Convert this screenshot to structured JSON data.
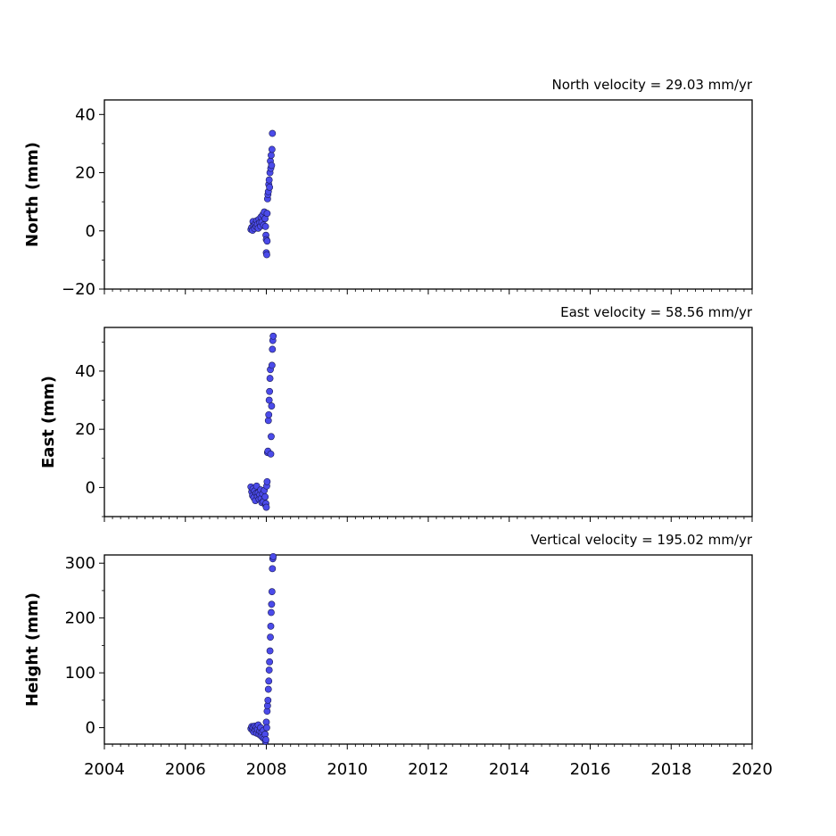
{
  "chart_data": {
    "type": "scatter",
    "xlim": [
      2004,
      2020
    ],
    "xticks": [
      2004,
      2006,
      2008,
      2010,
      2012,
      2014,
      2016,
      2018,
      2020
    ],
    "x_minor_step": 0.2,
    "x_ticklabels_on": "bottom panel only",
    "grid": false,
    "marker_color": "#4b4bea",
    "marker_edge_color": "#1a1a55",
    "panels": [
      {
        "id": "north",
        "ylabel": "North (mm)",
        "velocity_label": "North velocity = 29.03 mm/yr",
        "ylim": [
          -20,
          45
        ],
        "yticks": [
          -20,
          0,
          20,
          40
        ],
        "ytick_labels": [
          "−20",
          "0",
          "20",
          "40"
        ],
        "y_minor_step": 10,
        "points": [
          [
            2007.62,
            0.5
          ],
          [
            2007.64,
            1.2
          ],
          [
            2007.66,
            0.2
          ],
          [
            2007.67,
            3.2
          ],
          [
            2007.69,
            1.8
          ],
          [
            2007.71,
            0.8
          ],
          [
            2007.73,
            2.5
          ],
          [
            2007.75,
            1.5
          ],
          [
            2007.76,
            3.5
          ],
          [
            2007.78,
            2.2
          ],
          [
            2007.8,
            0.9
          ],
          [
            2007.82,
            4.0
          ],
          [
            2007.84,
            2.8
          ],
          [
            2007.86,
            1.6
          ],
          [
            2007.87,
            4.8
          ],
          [
            2007.89,
            3.0
          ],
          [
            2007.91,
            5.5
          ],
          [
            2007.93,
            2.0
          ],
          [
            2007.95,
            6.5
          ],
          [
            2007.97,
            4.2
          ],
          [
            2007.98,
            1.5
          ],
          [
            2007.99,
            -1.5
          ],
          [
            2008.0,
            -3.0
          ],
          [
            2008.0,
            -7.5
          ],
          [
            2008.01,
            -8.2
          ],
          [
            2008.02,
            -3.5
          ],
          [
            2008.02,
            6.0
          ],
          [
            2008.03,
            11.0
          ],
          [
            2008.04,
            12.5
          ],
          [
            2008.05,
            13.5
          ],
          [
            2008.06,
            16.0
          ],
          [
            2008.07,
            17.5
          ],
          [
            2008.08,
            15.0
          ],
          [
            2008.09,
            20.0
          ],
          [
            2008.1,
            24.0
          ],
          [
            2008.11,
            21.5
          ],
          [
            2008.12,
            26.0
          ],
          [
            2008.13,
            22.5
          ],
          [
            2008.14,
            28.0
          ],
          [
            2008.15,
            33.5
          ]
        ]
      },
      {
        "id": "east",
        "ylabel": "East (mm)",
        "velocity_label": "East velocity = 58.56 mm/yr",
        "ylim": [
          -10,
          55
        ],
        "yticks": [
          0,
          20,
          40
        ],
        "ytick_labels": [
          "0",
          "20",
          "40"
        ],
        "y_minor_step": 10,
        "points": [
          [
            2007.62,
            0.2
          ],
          [
            2007.64,
            -1.5
          ],
          [
            2007.66,
            -2.8
          ],
          [
            2007.67,
            -0.5
          ],
          [
            2007.69,
            -3.5
          ],
          [
            2007.71,
            -1.2
          ],
          [
            2007.73,
            -4.5
          ],
          [
            2007.75,
            -2.0
          ],
          [
            2007.76,
            0.5
          ],
          [
            2007.78,
            -3.0
          ],
          [
            2007.8,
            -1.8
          ],
          [
            2007.82,
            -4.0
          ],
          [
            2007.84,
            -2.5
          ],
          [
            2007.86,
            -0.8
          ],
          [
            2007.87,
            -3.8
          ],
          [
            2007.89,
            -5.2
          ],
          [
            2007.91,
            -2.2
          ],
          [
            2007.93,
            -4.8
          ],
          [
            2007.95,
            -1.0
          ],
          [
            2007.97,
            -3.2
          ],
          [
            2007.98,
            -6.0
          ],
          [
            2007.99,
            -5.5
          ],
          [
            2008.0,
            -6.8
          ],
          [
            2008.01,
            0.5
          ],
          [
            2008.02,
            2.0
          ],
          [
            2008.03,
            12.0
          ],
          [
            2008.04,
            12.5
          ],
          [
            2008.05,
            23.0
          ],
          [
            2008.06,
            25.0
          ],
          [
            2008.07,
            30.0
          ],
          [
            2008.08,
            33.0
          ],
          [
            2008.09,
            37.5
          ],
          [
            2008.1,
            40.5
          ],
          [
            2008.11,
            11.5
          ],
          [
            2008.12,
            17.5
          ],
          [
            2008.13,
            28.0
          ],
          [
            2008.14,
            42.0
          ],
          [
            2008.15,
            47.5
          ],
          [
            2008.16,
            50.5
          ],
          [
            2008.17,
            52.0
          ]
        ]
      },
      {
        "id": "height",
        "ylabel": "Height (mm)",
        "velocity_label": "Vertical velocity = 195.02 mm/yr",
        "ylim": [
          -30,
          315
        ],
        "yticks": [
          0,
          100,
          200,
          300
        ],
        "ytick_labels": [
          "0",
          "100",
          "200",
          "300"
        ],
        "y_minor_step": 50,
        "points": [
          [
            2007.62,
            -2
          ],
          [
            2007.64,
            2
          ],
          [
            2007.66,
            -5
          ],
          [
            2007.67,
            0
          ],
          [
            2007.69,
            -8
          ],
          [
            2007.71,
            3
          ],
          [
            2007.73,
            -4
          ],
          [
            2007.75,
            1
          ],
          [
            2007.76,
            -10
          ],
          [
            2007.78,
            -3
          ],
          [
            2007.8,
            5
          ],
          [
            2007.82,
            -12
          ],
          [
            2007.84,
            -6
          ],
          [
            2007.86,
            0
          ],
          [
            2007.87,
            -15
          ],
          [
            2007.89,
            -8
          ],
          [
            2007.91,
            -18
          ],
          [
            2007.93,
            -5
          ],
          [
            2007.95,
            -20
          ],
          [
            2007.97,
            -12
          ],
          [
            2007.98,
            -25
          ],
          [
            2007.99,
            -22
          ],
          [
            2008.0,
            10
          ],
          [
            2008.01,
            0
          ],
          [
            2008.02,
            30
          ],
          [
            2008.03,
            40
          ],
          [
            2008.04,
            50
          ],
          [
            2008.05,
            70
          ],
          [
            2008.06,
            85
          ],
          [
            2008.07,
            105
          ],
          [
            2008.08,
            120
          ],
          [
            2008.09,
            140
          ],
          [
            2008.1,
            165
          ],
          [
            2008.11,
            185
          ],
          [
            2008.12,
            210
          ],
          [
            2008.13,
            225
          ],
          [
            2008.14,
            248
          ],
          [
            2008.15,
            290
          ],
          [
            2008.16,
            308
          ],
          [
            2008.17,
            312
          ]
        ]
      }
    ],
    "bottom_xtick_labels": [
      "2004",
      "2006",
      "2008",
      "2010",
      "2012",
      "2014",
      "2016",
      "2018",
      "2020"
    ]
  }
}
